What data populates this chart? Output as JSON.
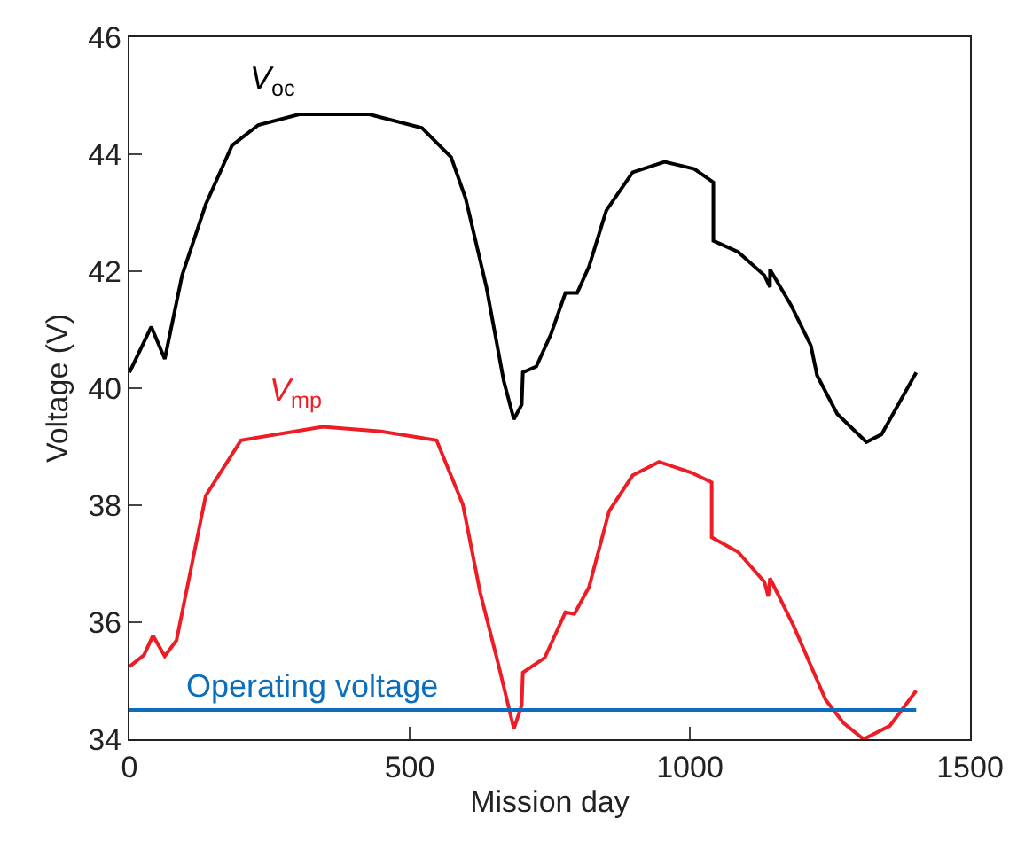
{
  "chart_data": {
    "type": "line",
    "xlabel": "Mission day",
    "ylabel": "Voltage (V)",
    "xlim": [
      0,
      1500
    ],
    "xticks": [
      0,
      500,
      1000,
      1500
    ],
    "ylim": [
      34,
      46
    ],
    "yticks": [
      34,
      36,
      38,
      40,
      42,
      44,
      46
    ],
    "legend": false,
    "line_style": "solid",
    "marker": "none",
    "series": [
      {
        "name": "V$_{oc}$",
        "color": "#000000",
        "x": [
          0,
          39,
          63,
          94,
          136,
          183,
          230,
          303,
          428,
          522,
          574,
          600,
          637,
          668,
          686,
          700,
          702,
          726,
          752,
          778,
          799,
          820,
          851,
          898,
          955,
          1008,
          1042,
          1042,
          1086,
          1133,
          1143,
          1143,
          1180,
          1216,
          1227,
          1263,
          1315,
          1342,
          1404
        ],
        "values": [
          40.27,
          41.05,
          40.5,
          41.93,
          43.14,
          44.15,
          44.5,
          44.68,
          44.68,
          44.45,
          43.95,
          43.24,
          41.73,
          40.12,
          39.47,
          39.72,
          40.27,
          40.37,
          40.92,
          41.63,
          41.63,
          42.08,
          43.04,
          43.69,
          43.87,
          43.75,
          43.52,
          42.52,
          42.33,
          41.93,
          41.73,
          42.03,
          41.43,
          40.73,
          40.22,
          39.56,
          39.08,
          39.21,
          40.27
        ]
      },
      {
        "name": "V$_{mp}$",
        "color": "#ee1c25",
        "x": [
          0,
          26,
          42,
          63,
          84,
          136,
          199,
          345,
          449,
          548,
          595,
          626,
          658,
          686,
          700,
          702,
          741,
          778,
          794,
          820,
          856,
          898,
          945,
          1002,
          1039,
          1039,
          1086,
          1133,
          1140,
          1143,
          1185,
          1242,
          1274,
          1310,
          1357,
          1404
        ],
        "values": [
          35.24,
          35.44,
          35.77,
          35.42,
          35.69,
          38.16,
          39.11,
          39.34,
          39.26,
          39.11,
          38.01,
          36.5,
          35.29,
          34.18,
          34.58,
          35.14,
          35.39,
          36.17,
          36.14,
          36.6,
          37.9,
          38.51,
          38.74,
          38.56,
          38.39,
          37.45,
          37.2,
          36.69,
          36.44,
          36.75,
          35.94,
          34.68,
          34.28,
          34.0,
          34.23,
          34.83
        ]
      },
      {
        "name": "Operating voltage",
        "color": "#0a6ebd",
        "x": [
          0,
          1404
        ],
        "values": [
          34.5,
          34.5
        ]
      }
    ]
  }
}
